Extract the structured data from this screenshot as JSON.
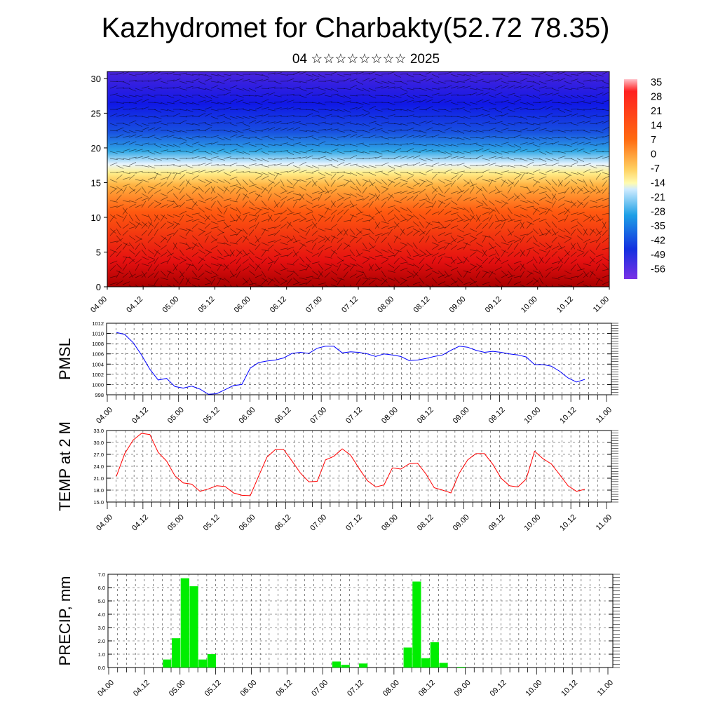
{
  "title": "Kazhydromet for Charbakty(52.72 78.35)",
  "subtitle": "04 ☆☆☆☆☆☆☆☆ 2025",
  "chart_data": [
    {
      "type": "heatmap",
      "name": "vertical-section",
      "ylim": [
        0,
        31
      ],
      "yticks": [
        "0",
        "5",
        "10",
        "15",
        "20",
        "25",
        "30"
      ],
      "xticks": [
        "04.00",
        "04.12",
        "05.00",
        "05.12",
        "06.00",
        "06.12",
        "07.00",
        "07.12",
        "08.00",
        "08.12",
        "09.00",
        "09.12",
        "10.00",
        "10.12",
        "11.00"
      ],
      "colorbar_labels": [
        "35",
        "28",
        "21",
        "14",
        "7",
        "0",
        "-7",
        "-14",
        "-21",
        "-28",
        "-35",
        "-42",
        "-49",
        "-56"
      ],
      "colorbar_range": [
        -63,
        42
      ]
    },
    {
      "type": "line",
      "name": "pmsl",
      "ylabel": "PMSL",
      "ylim": [
        998,
        1012
      ],
      "yticks": [
        "998",
        "1000",
        "1002",
        "1004",
        "1006",
        "1008",
        "1010",
        "1012"
      ],
      "xticks": [
        "04.00",
        "04.12",
        "05.00",
        "05.12",
        "06.00",
        "06.12",
        "07.00",
        "07.12",
        "08.00",
        "08.12",
        "09.00",
        "09.12",
        "10.00",
        "10.12",
        "11.00"
      ],
      "color": "#0000ff",
      "values": [
        1010.2,
        1009.8,
        1008.2,
        1005.8,
        1003.0,
        1000.9,
        1001.2,
        999.6,
        999.3,
        999.7,
        999.1,
        998.1,
        998.2,
        999.0,
        999.8,
        1000.0,
        1003.2,
        1004.3,
        1004.6,
        1004.8,
        1005.2,
        1006.1,
        1006.3,
        1006.1,
        1007.1,
        1007.5,
        1007.5,
        1006.2,
        1006.4,
        1006.3,
        1006.0,
        1005.5,
        1006.0,
        1005.8,
        1005.5,
        1004.7,
        1004.8,
        1005.1,
        1005.5,
        1005.8,
        1006.7,
        1007.5,
        1007.3,
        1006.7,
        1006.3,
        1006.5,
        1006.3,
        1006.0,
        1005.8,
        1005.4,
        1003.9,
        1003.9,
        1003.6,
        1002.6,
        1001.3,
        1000.5,
        1001.0
      ]
    },
    {
      "type": "line",
      "name": "temp-2m",
      "ylabel": "TEMP at 2 M",
      "ylim": [
        15,
        33
      ],
      "yticks": [
        "15.0",
        "18.0",
        "21.0",
        "24.0",
        "27.0",
        "30.0",
        "33.0"
      ],
      "xticks": [
        "04.00",
        "04.12",
        "05.00",
        "05.12",
        "06.00",
        "06.12",
        "07.00",
        "07.12",
        "08.00",
        "08.12",
        "09.00",
        "09.12",
        "10.00",
        "10.12",
        "11.00"
      ],
      "color": "#ff0000",
      "values": [
        21.5,
        27.2,
        30.6,
        32.3,
        32.0,
        27.5,
        25.3,
        21.6,
        19.8,
        19.5,
        17.7,
        18.3,
        19.1,
        18.9,
        17.3,
        16.7,
        16.6,
        21.5,
        26.3,
        28.2,
        28.2,
        25.3,
        22.3,
        20.1,
        20.2,
        25.6,
        26.5,
        28.4,
        26.8,
        23.5,
        20.4,
        18.8,
        19.3,
        23.6,
        23.3,
        24.6,
        24.8,
        22.1,
        18.6,
        18.0,
        17.3,
        22.3,
        25.6,
        27.2,
        27.2,
        24.5,
        21.0,
        19.1,
        18.8,
        20.8,
        27.8,
        25.9,
        24.6,
        21.9,
        19.1,
        17.7,
        18.2
      ]
    },
    {
      "type": "bar",
      "name": "precip",
      "ylabel": "PRECIP, mm",
      "ylim": [
        0,
        7
      ],
      "yticks": [
        "0.0",
        "1.0",
        "2.0",
        "3.0",
        "4.0",
        "5.0",
        "6.0",
        "7.0"
      ],
      "xticks": [
        "04.00",
        "04.12",
        "05.00",
        "05.12",
        "06.00",
        "06.12",
        "07.00",
        "07.12",
        "08.00",
        "08.12",
        "09.00",
        "09.12",
        "10.00",
        "10.12",
        "11.00"
      ],
      "color": "#00ee00",
      "values": [
        0,
        0,
        0,
        0,
        0,
        0,
        0.6,
        2.2,
        6.7,
        6.1,
        0.6,
        1.0,
        0,
        0,
        0,
        0,
        0,
        0,
        0,
        0,
        0,
        0,
        0,
        0,
        0,
        0.45,
        0.2,
        0,
        0.3,
        0,
        0,
        0,
        0,
        1.5,
        6.45,
        0.7,
        1.9,
        0.35,
        0,
        0.05,
        0,
        0,
        0,
        0,
        0,
        0,
        0,
        0,
        0,
        0,
        0,
        0,
        0,
        0,
        0,
        0
      ]
    }
  ]
}
